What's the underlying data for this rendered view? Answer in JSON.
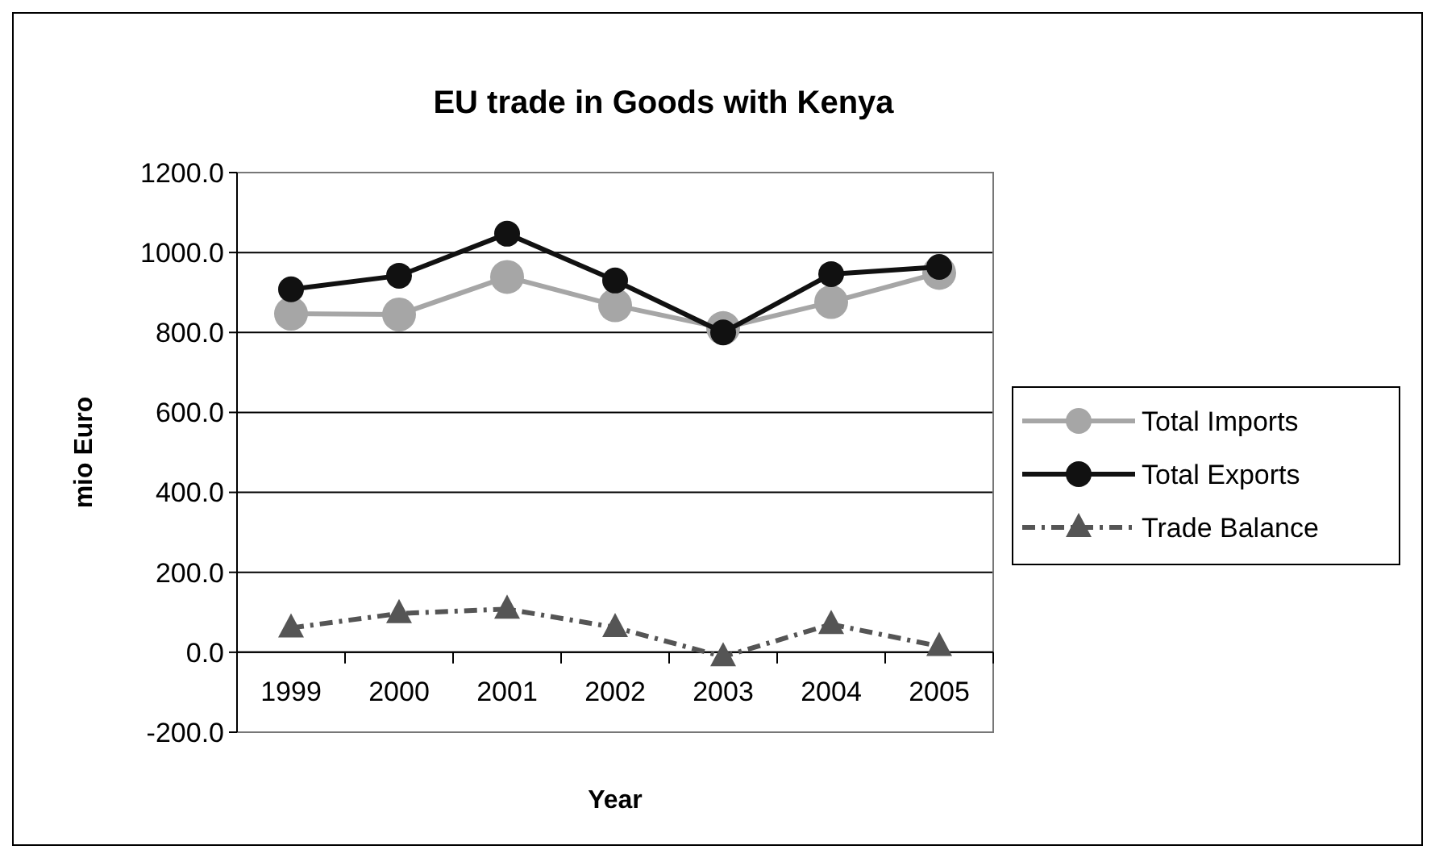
{
  "chart_data": {
    "type": "line",
    "title": "EU trade in Goods with Kenya",
    "xlabel": "Year",
    "ylabel": "mio Euro",
    "categories": [
      "1999",
      "2000",
      "2001",
      "2002",
      "2003",
      "2004",
      "2005"
    ],
    "series": [
      {
        "name": "Total Imports",
        "color": "#a6a6a6",
        "values": [
          847,
          845,
          939,
          868,
          811,
          876,
          949
        ],
        "marker": "circle",
        "line_style": "solid"
      },
      {
        "name": "Total Exports",
        "color": "#111111",
        "values": [
          908,
          942,
          1047,
          930,
          800,
          946,
          964
        ],
        "marker": "circle",
        "line_style": "solid"
      },
      {
        "name": "Trade Balance",
        "color": "#555555",
        "values": [
          61,
          97,
          108,
          62,
          -11,
          70,
          15
        ],
        "marker": "triangle",
        "line_style": "dashdot"
      }
    ],
    "ylim": [
      -200,
      1200
    ],
    "yticks": [
      {
        "value": -200,
        "label": "-200.0"
      },
      {
        "value": 0,
        "label": "0.0"
      },
      {
        "value": 200,
        "label": "200.0"
      },
      {
        "value": 400,
        "label": "400.0"
      },
      {
        "value": 600,
        "label": "600.0"
      },
      {
        "value": 800,
        "label": "800.0"
      },
      {
        "value": 1000,
        "label": "1000.0"
      },
      {
        "value": 1200,
        "label": "1200.0"
      }
    ],
    "grid": "y",
    "legend": "right"
  }
}
